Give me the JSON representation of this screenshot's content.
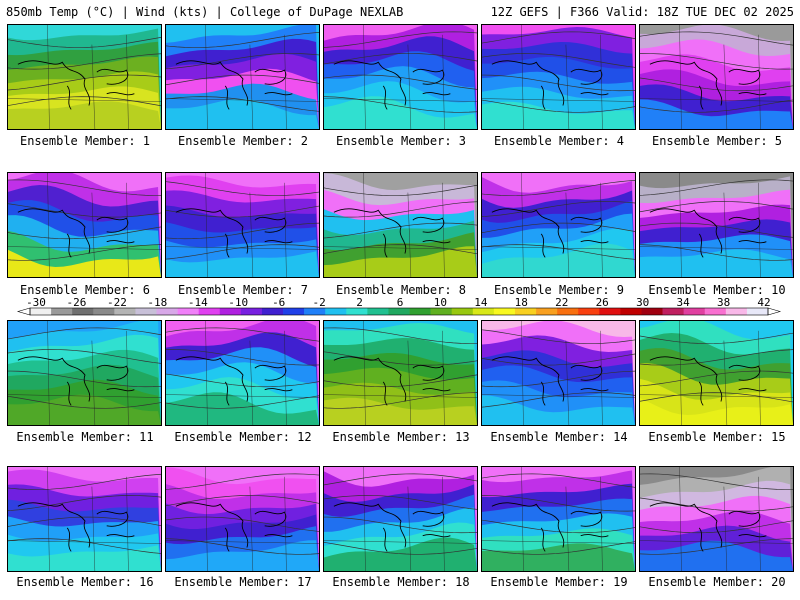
{
  "header": {
    "left": "850mb Temp (°C) | Wind (kts) | College of DuPage NEXLAB",
    "right": "12Z GEFS | F366 Valid: 18Z TUE DEC 02 2025"
  },
  "colorbar": {
    "labels": [
      "-30",
      "-26",
      "-22",
      "-18",
      "-14",
      "-10",
      "-6",
      "-2",
      "2",
      "6",
      "10",
      "14",
      "18",
      "22",
      "26",
      "30",
      "34",
      "38",
      "42"
    ],
    "colors": [
      "#f0f0f0",
      "#9a9a9a",
      "#707070",
      "#8a8a8a",
      "#b4b4b4",
      "#c8c0d8",
      "#d8a8e8",
      "#f080f8",
      "#e040f0",
      "#b020e0",
      "#7820e0",
      "#4020d0",
      "#2040e8",
      "#2080f8",
      "#20c0f0",
      "#30e0d0",
      "#20c090",
      "#20a860",
      "#30a030",
      "#60b020",
      "#98c810",
      "#d8e818",
      "#f8f820",
      "#f8d020",
      "#f8a020",
      "#f87010",
      "#f84010",
      "#e01010",
      "#c00000",
      "#a00010",
      "#c02060",
      "#e040a0",
      "#f870d0",
      "#f8b8e8",
      "#e8e8f8"
    ]
  },
  "panels": [
    {
      "label": "Ensemble Member: 1",
      "colors": [
        "#30d8d8",
        "#20b890",
        "#30a040",
        "#6cb020",
        "#a8cc18",
        "#d8e420",
        "#b8d020"
      ]
    },
    {
      "label": "Ensemble Member: 2",
      "colors": [
        "#20c0f0",
        "#2080f8",
        "#4020d0",
        "#8020e0",
        "#f050f0",
        "#2090f0",
        "#20c0f0"
      ]
    },
    {
      "label": "Ensemble Member: 3",
      "colors": [
        "#f060f0",
        "#b020e0",
        "#4020d0",
        "#2060f0",
        "#20a0f8",
        "#20c8f0",
        "#30e0d0"
      ]
    },
    {
      "label": "Ensemble Member: 4",
      "colors": [
        "#f050f0",
        "#8020e0",
        "#3030d8",
        "#2050e8",
        "#2090f8",
        "#20c0f0",
        "#30e0d0"
      ]
    },
    {
      "label": "Ensemble Member: 5",
      "colors": [
        "#9a9a9a",
        "#c8a8d8",
        "#f070f8",
        "#e040f0",
        "#b020e0",
        "#4020d0",
        "#2080f8"
      ]
    },
    {
      "label": "Ensemble Member: 6",
      "colors": [
        "#f070f8",
        "#c030e8",
        "#5020d0",
        "#2050e8",
        "#20b0f0",
        "#30c070",
        "#e8e818"
      ]
    },
    {
      "label": "Ensemble Member: 7",
      "colors": [
        "#f070f8",
        "#e040f0",
        "#8020e0",
        "#4020d0",
        "#2050e8",
        "#2090f8",
        "#20c0f0"
      ]
    },
    {
      "label": "Ensemble Member: 8",
      "colors": [
        "#a0a0a0",
        "#c8b8d8",
        "#f070f8",
        "#20c0f0",
        "#20b890",
        "#40a030",
        "#a8cc18"
      ]
    },
    {
      "label": "Ensemble Member: 9",
      "colors": [
        "#f070f8",
        "#c030e8",
        "#4020d0",
        "#2050e8",
        "#20a0f8",
        "#20c8f0",
        "#30d8d0"
      ]
    },
    {
      "label": "Ensemble Member: 10",
      "colors": [
        "#8a8a8a",
        "#b8b0c8",
        "#f070f8",
        "#b020e0",
        "#4020d0",
        "#2090f8",
        "#20c0f0"
      ]
    },
    {
      "label": "Ensemble Member: 11",
      "colors": [
        "#20a0f8",
        "#20c0f0",
        "#30e0d0",
        "#20c090",
        "#20a860",
        "#30a030",
        "#50a828"
      ]
    },
    {
      "label": "Ensemble Member: 12",
      "colors": [
        "#f060f0",
        "#c030e8",
        "#4020d0",
        "#2090f8",
        "#20c8f0",
        "#30e0d0",
        "#20b880"
      ]
    },
    {
      "label": "Ensemble Member: 13",
      "colors": [
        "#20c0f0",
        "#30e0c0",
        "#20b070",
        "#30a030",
        "#60b020",
        "#90c018",
        "#b8d020"
      ]
    },
    {
      "label": "Ensemble Member: 14",
      "colors": [
        "#f8b8e8",
        "#f070f8",
        "#8020e0",
        "#3030d8",
        "#2060f0",
        "#2090f8",
        "#20c0f0"
      ]
    },
    {
      "label": "Ensemble Member: 15",
      "colors": [
        "#20c8f0",
        "#30e0c0",
        "#20b070",
        "#40a030",
        "#a8cc18",
        "#d8e418",
        "#e8f018"
      ]
    },
    {
      "label": "Ensemble Member: 16",
      "colors": [
        "#f070f8",
        "#d040f0",
        "#7020e0",
        "#3040e0",
        "#20a0f8",
        "#20c8f0",
        "#30e0d0"
      ]
    },
    {
      "label": "Ensemble Member: 17",
      "colors": [
        "#f070f8",
        "#f050f0",
        "#c030e8",
        "#7020e0",
        "#4020d0",
        "#2070f0",
        "#20a8f8"
      ]
    },
    {
      "label": "Ensemble Member: 18",
      "colors": [
        "#f070f8",
        "#b020e0",
        "#4020d0",
        "#2070f0",
        "#20c0f0",
        "#30e0d0",
        "#20b070"
      ]
    },
    {
      "label": "Ensemble Member: 19",
      "colors": [
        "#f070f8",
        "#c030e8",
        "#4020d0",
        "#2070f0",
        "#20c0f0",
        "#30e0c0",
        "#30b060"
      ]
    },
    {
      "label": "Ensemble Member: 20",
      "colors": [
        "#8a8a8a",
        "#b0b0b0",
        "#d0b8e0",
        "#f070f8",
        "#c030e8",
        "#6020d8",
        "#2070f0"
      ]
    }
  ]
}
